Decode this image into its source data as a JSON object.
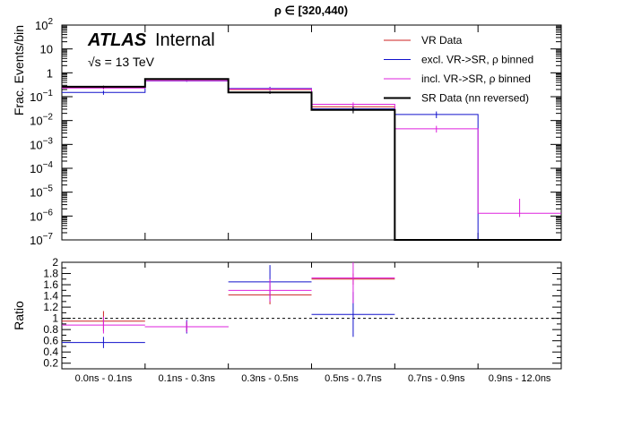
{
  "title": "ρ ∈ [320,440)",
  "atlas_label": "ATLAS",
  "atlas_sub": "Internal",
  "energy_label": "√s = 13 TeV",
  "colors": {
    "vr": "#cc2222",
    "excl": "#1111cc",
    "incl": "#dd22dd",
    "sr": "#000000"
  },
  "chart_data": [
    {
      "type": "line",
      "subtype": "step-histogram",
      "ylabel": "Frac. Events/bin",
      "yscale": "log",
      "ylim": [
        1e-07,
        100
      ],
      "y_ticks": [
        {
          "v": 1e-07,
          "base": "10",
          "exp": "−7"
        },
        {
          "v": 1e-06,
          "base": "10",
          "exp": "−6"
        },
        {
          "v": 1e-05,
          "base": "10",
          "exp": "−5"
        },
        {
          "v": 0.0001,
          "base": "10",
          "exp": "−4"
        },
        {
          "v": 0.001,
          "base": "10",
          "exp": "−3"
        },
        {
          "v": 0.01,
          "base": "10",
          "exp": "−2"
        },
        {
          "v": 0.1,
          "base": "10",
          "exp": "−1"
        },
        {
          "v": 1,
          "base": "1",
          "exp": ""
        },
        {
          "v": 10,
          "base": "10",
          "exp": ""
        },
        {
          "v": 100,
          "base": "10",
          "exp": "2"
        }
      ],
      "legend_position": "top-right",
      "series": [
        {
          "name": "VR Data",
          "key": "vr",
          "values": [
            0.24,
            0.48,
            0.2,
            0.038,
            0.0,
            0.0
          ],
          "errors": [
            0.03,
            0.03,
            0.02,
            0.006,
            0,
            0
          ]
        },
        {
          "name": "excl. VR->SR, ρ binned",
          "key": "excl",
          "values": [
            0.15,
            0.46,
            0.22,
            0.031,
            0.018,
            0.0
          ],
          "errors": [
            0.03,
            0.04,
            0.04,
            0.008,
            0.006,
            0
          ]
        },
        {
          "name": "incl. VR->SR, ρ binned",
          "key": "incl",
          "values": [
            0.23,
            0.47,
            0.21,
            0.048,
            0.0045,
            1.3e-06
          ],
          "errors": [
            0.03,
            0.03,
            0.03,
            0.01,
            0.0015,
            4e-06
          ]
        },
        {
          "name": "SR Data (nn reversed)",
          "key": "sr",
          "values": [
            0.26,
            0.55,
            0.15,
            0.028,
            0.0,
            0.0
          ],
          "errors": [
            0.03,
            0.03,
            0.02,
            0.008,
            0,
            0
          ]
        }
      ]
    },
    {
      "type": "line",
      "subtype": "ratio",
      "ylabel": "Ratio",
      "ylim": [
        0.1,
        2
      ],
      "y_ticks": [
        "0.2",
        "0.4",
        "0.6",
        "0.8",
        "1",
        "1.2",
        "1.4",
        "1.6",
        "1.8",
        "2"
      ],
      "reference_line": 1,
      "categories": [
        "0.0ns - 0.1ns",
        "0.1ns - 0.3ns",
        "0.3ns - 0.5ns",
        "0.5ns - 0.7ns",
        "0.7ns - 0.9ns",
        "0.9ns - 12.0ns"
      ],
      "series": [
        {
          "key": "vr",
          "values": [
            0.95,
            0.85,
            1.42,
            1.7,
            null,
            null
          ],
          "errors": [
            0.18,
            0.08,
            0.17,
            0.1,
            null,
            null
          ]
        },
        {
          "key": "excl",
          "values": [
            0.57,
            0.85,
            1.65,
            1.07,
            null,
            null
          ],
          "errors": [
            0.1,
            0.12,
            0.3,
            0.4,
            null,
            null
          ]
        },
        {
          "key": "incl",
          "values": [
            0.88,
            0.85,
            1.5,
            1.72,
            null,
            null
          ],
          "errors": [
            0.15,
            0.1,
            0.2,
            0.45,
            null,
            null
          ]
        }
      ]
    }
  ]
}
